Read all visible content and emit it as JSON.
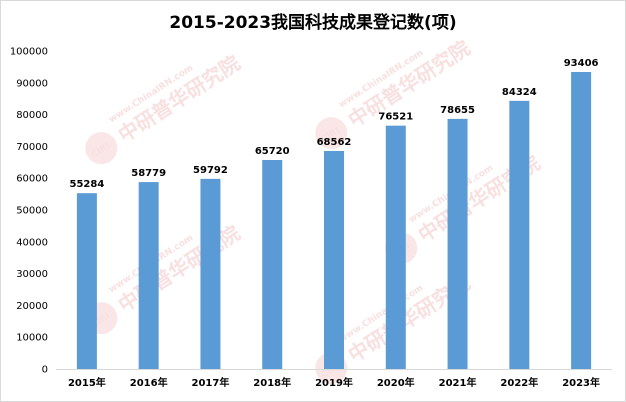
{
  "chart_data": {
    "type": "bar",
    "title": "2015-2023我国科技成果登记数(项)",
    "categories": [
      "2015年",
      "2016年",
      "2017年",
      "2018年",
      "2019年",
      "2020年",
      "2021年",
      "2022年",
      "2023年"
    ],
    "values": [
      55284,
      58779,
      59792,
      65720,
      68562,
      76521,
      78655,
      84324,
      93406
    ],
    "ylim": [
      0,
      100000
    ],
    "yticks": [
      0,
      10000,
      20000,
      30000,
      40000,
      50000,
      60000,
      70000,
      80000,
      90000,
      100000
    ],
    "xlabel": "",
    "ylabel": "",
    "grid": false,
    "legend": "none",
    "bar_color": "#5b9bd5"
  },
  "watermark": {
    "logo_text": "CIRI",
    "brand_text": "中研普华研究院",
    "url_text": "www.ChinaIRN.com"
  }
}
